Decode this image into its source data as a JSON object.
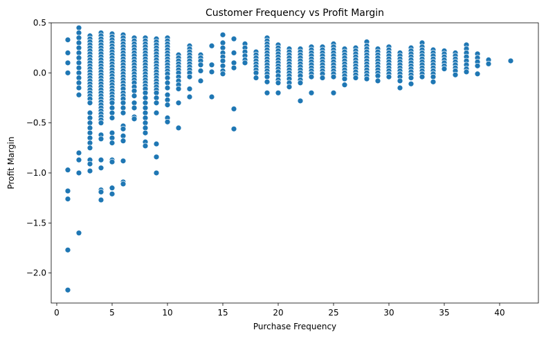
{
  "chart_data": {
    "type": "scatter",
    "title": "Customer Frequency vs Profit Margin",
    "xlabel": "Purchase Frequency",
    "ylabel": "Profit Margin",
    "xlim": [
      -0.5,
      43.5
    ],
    "ylim": [
      -2.3,
      0.5
    ],
    "xticks": [
      0,
      5,
      10,
      15,
      20,
      25,
      30,
      35,
      40
    ],
    "yticks": [
      -2.0,
      -1.5,
      -1.0,
      -0.5,
      0.0,
      0.5
    ],
    "ytick_labels": [
      "−2.0",
      "−1.5",
      "−1.0",
      "−0.5",
      "0.0",
      "0.5"
    ],
    "grid": false,
    "marker_color": "#1f77b4",
    "columns": [
      {
        "x": 1,
        "y": [
          0.33,
          0.2,
          0.1,
          0.0,
          -0.97,
          -1.18,
          -1.26,
          -1.77,
          -2.17
        ]
      },
      {
        "x": 2,
        "y": [
          0.45,
          0.4,
          0.35,
          0.3,
          0.25,
          0.2,
          0.15,
          0.1,
          0.05,
          0.0,
          -0.05,
          -0.1,
          -0.15,
          -0.22,
          -0.8,
          -0.87,
          -1.0,
          -1.6
        ]
      },
      {
        "x": 3,
        "y": [
          0.37,
          0.34,
          0.31,
          0.28,
          0.25,
          0.22,
          0.19,
          0.16,
          0.13,
          0.1,
          0.07,
          0.04,
          0.01,
          -0.02,
          -0.05,
          -0.08,
          -0.11,
          -0.14,
          -0.17,
          -0.2,
          -0.23,
          -0.26,
          -0.3,
          -0.4,
          -0.45,
          -0.5,
          -0.55,
          -0.6,
          -0.65,
          -0.7,
          -0.75,
          -0.87,
          -0.91,
          -0.98
        ]
      },
      {
        "x": 4,
        "y": [
          0.4,
          0.37,
          0.34,
          0.31,
          0.28,
          0.25,
          0.22,
          0.19,
          0.16,
          0.13,
          0.1,
          0.07,
          0.04,
          0.01,
          -0.02,
          -0.05,
          -0.08,
          -0.11,
          -0.14,
          -0.17,
          -0.2,
          -0.23,
          -0.26,
          -0.29,
          -0.32,
          -0.35,
          -0.38,
          -0.41,
          -0.44,
          -0.47,
          -0.5,
          -0.62,
          -0.66,
          -0.87,
          -0.95,
          -1.17,
          -1.19,
          -1.27
        ]
      },
      {
        "x": 5,
        "y": [
          0.39,
          0.36,
          0.33,
          0.3,
          0.27,
          0.24,
          0.21,
          0.18,
          0.15,
          0.12,
          0.09,
          0.06,
          0.03,
          0.0,
          -0.03,
          -0.06,
          -0.09,
          -0.12,
          -0.15,
          -0.18,
          -0.21,
          -0.24,
          -0.27,
          -0.3,
          -0.35,
          -0.4,
          -0.45,
          -0.6,
          -0.65,
          -0.7,
          -0.87,
          -0.89,
          -1.15,
          -1.21
        ]
      },
      {
        "x": 6,
        "y": [
          0.38,
          0.35,
          0.32,
          0.29,
          0.26,
          0.23,
          0.2,
          0.17,
          0.14,
          0.11,
          0.08,
          0.05,
          0.02,
          -0.01,
          -0.04,
          -0.07,
          -0.1,
          -0.13,
          -0.16,
          -0.2,
          -0.23,
          -0.26,
          -0.3,
          -0.35,
          -0.4,
          -0.53,
          -0.56,
          -0.63,
          -0.68,
          -0.88,
          -1.09,
          -1.11
        ]
      },
      {
        "x": 7,
        "y": [
          0.35,
          0.32,
          0.29,
          0.26,
          0.23,
          0.2,
          0.17,
          0.14,
          0.11,
          0.08,
          0.05,
          0.02,
          -0.01,
          -0.04,
          -0.07,
          -0.1,
          -0.14,
          -0.18,
          -0.23,
          -0.3,
          -0.35,
          -0.44,
          -0.46
        ]
      },
      {
        "x": 8,
        "y": [
          0.35,
          0.32,
          0.29,
          0.26,
          0.23,
          0.2,
          0.17,
          0.14,
          0.11,
          0.08,
          0.05,
          0.02,
          -0.01,
          -0.04,
          -0.07,
          -0.1,
          -0.13,
          -0.16,
          -0.2,
          -0.25,
          -0.3,
          -0.35,
          -0.4,
          -0.45,
          -0.5,
          -0.55,
          -0.6,
          -0.69,
          -0.73
        ]
      },
      {
        "x": 9,
        "y": [
          0.34,
          0.31,
          0.28,
          0.25,
          0.22,
          0.19,
          0.16,
          0.13,
          0.1,
          0.07,
          0.04,
          0.01,
          -0.02,
          -0.05,
          -0.08,
          -0.11,
          -0.14,
          -0.17,
          -0.2,
          -0.25,
          -0.3,
          -0.4,
          -0.71,
          -0.84,
          -1.0
        ]
      },
      {
        "x": 10,
        "y": [
          0.35,
          0.32,
          0.29,
          0.26,
          0.23,
          0.2,
          0.17,
          0.14,
          0.11,
          0.08,
          0.05,
          0.02,
          -0.01,
          -0.05,
          -0.1,
          -0.15,
          -0.22,
          -0.27,
          -0.32,
          -0.45,
          -0.49
        ]
      },
      {
        "x": 11,
        "y": [
          0.18,
          0.15,
          0.12,
          0.09,
          0.06,
          0.03,
          0.0,
          -0.04,
          -0.08,
          -0.12,
          -0.16,
          -0.3,
          -0.55
        ]
      },
      {
        "x": 12,
        "y": [
          0.27,
          0.24,
          0.21,
          0.18,
          0.15,
          0.12,
          0.09,
          0.06,
          0.03,
          0.0,
          -0.04,
          -0.16,
          -0.24
        ]
      },
      {
        "x": 13,
        "y": [
          0.18,
          0.15,
          0.12,
          0.08,
          0.02,
          -0.08
        ]
      },
      {
        "x": 14,
        "y": [
          0.27,
          0.08,
          0.01,
          -0.24
        ]
      },
      {
        "x": 15,
        "y": [
          0.38,
          0.3,
          0.25,
          0.2,
          0.16,
          0.12,
          0.07,
          0.02,
          -0.01
        ]
      },
      {
        "x": 16,
        "y": [
          0.34,
          0.2,
          0.1,
          0.05,
          -0.36,
          -0.56
        ]
      },
      {
        "x": 17,
        "y": [
          0.29,
          0.25,
          0.21,
          0.17,
          0.13,
          0.1
        ]
      },
      {
        "x": 18,
        "y": [
          0.21,
          0.18,
          0.15,
          0.12,
          0.09,
          0.06,
          0.03,
          0.0,
          -0.05
        ]
      },
      {
        "x": 19,
        "y": [
          0.35,
          0.32,
          0.29,
          0.26,
          0.23,
          0.2,
          0.17,
          0.14,
          0.11,
          0.08,
          0.05,
          0.02,
          -0.01,
          -0.04,
          -0.09,
          -0.2
        ]
      },
      {
        "x": 20,
        "y": [
          0.28,
          0.25,
          0.22,
          0.19,
          0.16,
          0.13,
          0.1,
          0.07,
          0.04,
          0.01,
          -0.03,
          -0.07,
          -0.1,
          -0.2
        ]
      },
      {
        "x": 21,
        "y": [
          0.24,
          0.21,
          0.18,
          0.15,
          0.12,
          0.09,
          0.06,
          0.03,
          0.0,
          -0.03,
          -0.06,
          -0.1,
          -0.14
        ]
      },
      {
        "x": 22,
        "y": [
          0.24,
          0.21,
          0.18,
          0.15,
          0.12,
          0.09,
          0.06,
          0.03,
          0.0,
          -0.03,
          -0.07,
          -0.1,
          -0.28
        ]
      },
      {
        "x": 23,
        "y": [
          0.26,
          0.23,
          0.2,
          0.17,
          0.14,
          0.11,
          0.08,
          0.05,
          0.02,
          -0.01,
          -0.04,
          -0.2
        ]
      },
      {
        "x": 24,
        "y": [
          0.26,
          0.23,
          0.2,
          0.17,
          0.14,
          0.11,
          0.08,
          0.05,
          0.02,
          -0.01,
          -0.05
        ]
      },
      {
        "x": 25,
        "y": [
          0.29,
          0.26,
          0.23,
          0.2,
          0.17,
          0.14,
          0.11,
          0.08,
          0.05,
          0.02,
          -0.01,
          -0.04,
          -0.2
        ]
      },
      {
        "x": 26,
        "y": [
          0.24,
          0.21,
          0.18,
          0.15,
          0.12,
          0.09,
          0.06,
          0.03,
          0.0,
          -0.03,
          -0.06,
          -0.12
        ]
      },
      {
        "x": 27,
        "y": [
          0.25,
          0.22,
          0.19,
          0.16,
          0.13,
          0.1,
          0.07,
          0.04,
          0.01,
          -0.02,
          -0.05
        ]
      },
      {
        "x": 28,
        "y": [
          0.31,
          0.27,
          0.24,
          0.21,
          0.18,
          0.15,
          0.12,
          0.09,
          0.06,
          0.03,
          0.0,
          -0.03,
          -0.06
        ]
      },
      {
        "x": 29,
        "y": [
          0.24,
          0.21,
          0.18,
          0.15,
          0.12,
          0.09,
          0.06,
          0.03,
          0.0,
          -0.03,
          -0.08
        ]
      },
      {
        "x": 30,
        "y": [
          0.26,
          0.23,
          0.2,
          0.17,
          0.14,
          0.11,
          0.08,
          0.05,
          0.02,
          -0.01,
          -0.04
        ]
      },
      {
        "x": 31,
        "y": [
          0.2,
          0.17,
          0.14,
          0.11,
          0.08,
          0.05,
          0.02,
          -0.01,
          -0.04,
          -0.08,
          -0.15
        ]
      },
      {
        "x": 32,
        "y": [
          0.25,
          0.22,
          0.19,
          0.16,
          0.13,
          0.1,
          0.07,
          0.04,
          0.01,
          -0.02,
          -0.05,
          -0.11
        ]
      },
      {
        "x": 33,
        "y": [
          0.3,
          0.26,
          0.23,
          0.2,
          0.17,
          0.14,
          0.11,
          0.08,
          0.05,
          0.02,
          -0.01,
          -0.04
        ]
      },
      {
        "x": 34,
        "y": [
          0.23,
          0.2,
          0.17,
          0.14,
          0.11,
          0.08,
          0.05,
          0.02,
          -0.01,
          -0.04,
          -0.09
        ]
      },
      {
        "x": 35,
        "y": [
          0.22,
          0.19,
          0.16,
          0.13,
          0.1,
          0.07,
          0.04
        ]
      },
      {
        "x": 36,
        "y": [
          0.2,
          0.17,
          0.14,
          0.11,
          0.08,
          0.05,
          0.02,
          -0.02
        ]
      },
      {
        "x": 37,
        "y": [
          0.28,
          0.24,
          0.2,
          0.16,
          0.12,
          0.08,
          0.04,
          0.01
        ]
      },
      {
        "x": 38,
        "y": [
          0.19,
          0.15,
          0.11,
          0.07,
          -0.01
        ]
      },
      {
        "x": 39,
        "y": [
          0.13,
          0.09
        ]
      },
      {
        "x": 41,
        "y": [
          0.12
        ]
      }
    ]
  }
}
